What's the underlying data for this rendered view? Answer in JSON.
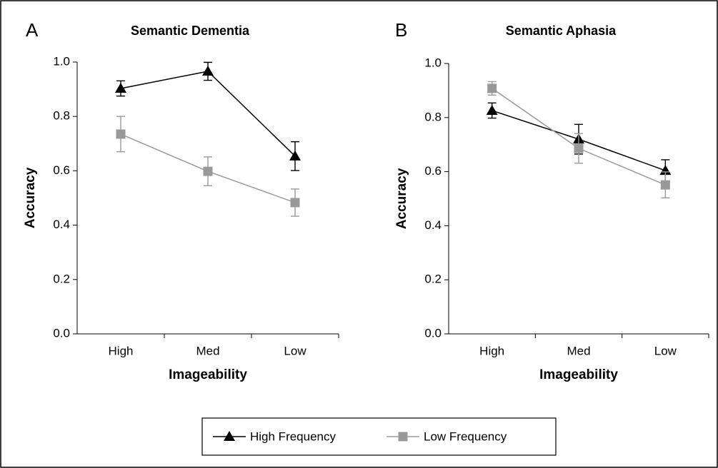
{
  "chart_data": [
    {
      "type": "line",
      "panel_label": "A",
      "title": "Semantic Dementia",
      "x_label": "Imageability",
      "y_label": "Accuracy",
      "categories": [
        "High",
        "Med",
        "Low"
      ],
      "ylim": [
        0,
        1
      ],
      "yticks": [
        {
          "value": 0,
          "label": "0.0"
        },
        0.2,
        0.4,
        0.6,
        0.8,
        {
          "value": 1,
          "label": "1.0"
        }
      ],
      "series": [
        {
          "name": "High Frequency",
          "color": "#000000",
          "marker": "triangle",
          "values": [
            0.903,
            0.966,
            0.654
          ],
          "errors": [
            0.028,
            0.033,
            0.053
          ]
        },
        {
          "name": "Low Frequency",
          "color": "#999999",
          "marker": "square",
          "values": [
            0.735,
            0.598,
            0.483
          ],
          "errors": [
            0.065,
            0.053,
            0.05
          ]
        }
      ]
    },
    {
      "type": "line",
      "panel_label": "B",
      "title": "Semantic Aphasia",
      "x_label": "Imageability",
      "y_label": "Accuracy",
      "categories": [
        "High",
        "Med",
        "Low"
      ],
      "ylim": [
        0,
        1
      ],
      "yticks": [
        {
          "value": 0,
          "label": "0.0"
        },
        0.2,
        0.4,
        0.6,
        0.8,
        {
          "value": 1,
          "label": "1.0"
        }
      ],
      "series": [
        {
          "name": "High Frequency",
          "color": "#000000",
          "marker": "triangle",
          "values": [
            0.826,
            0.72,
            0.604
          ],
          "errors": [
            0.028,
            0.055,
            0.04
          ]
        },
        {
          "name": "Low Frequency",
          "color": "#999999",
          "marker": "square",
          "values": [
            0.908,
            0.686,
            0.551
          ],
          "errors": [
            0.025,
            0.055,
            0.048
          ]
        }
      ]
    }
  ]
}
